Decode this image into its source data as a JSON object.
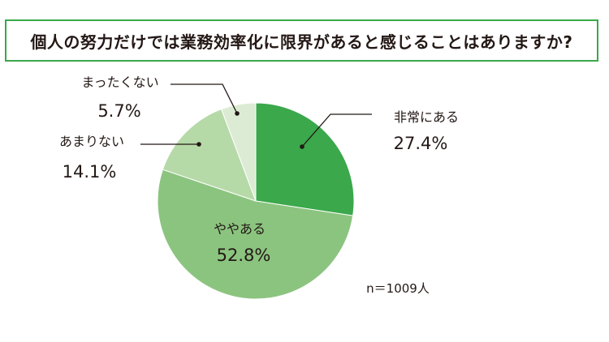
{
  "title": "個人の努力だけでは業務効率化に限界があると感じることはありますか?",
  "note": "n＝1009人",
  "colors": {
    "border": "#3aa84b",
    "slices": [
      "#3aa84b",
      "#8bc47f",
      "#b6d9a8",
      "#dcecd4"
    ],
    "leader": "#231815"
  },
  "chart_data": {
    "type": "pie",
    "title": "個人の努力だけでは業務効率化に限界があると感じることはありますか?",
    "slices": [
      {
        "name": "非常にある",
        "value": 27.4,
        "label": "27.4%"
      },
      {
        "name": "ややある",
        "value": 52.8,
        "label": "52.8%"
      },
      {
        "name": "あまりない",
        "value": 14.1,
        "label": "14.1%"
      },
      {
        "name": "まったくない",
        "value": 5.7,
        "label": "5.7%"
      }
    ]
  }
}
